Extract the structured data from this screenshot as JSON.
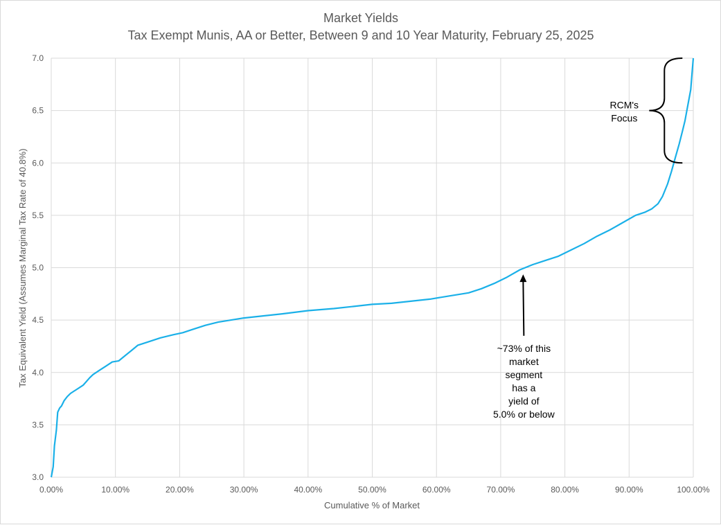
{
  "chart_data": {
    "type": "line",
    "title": "Market Yields",
    "subtitle": "Tax Exempt Munis, AA or Better, Between 9 and 10 Year Maturity, February 25, 2025",
    "xlabel": "Cumulative % of Market",
    "ylabel": "Tax Equivalent Yield (Assumes Marginal Tax Rate of 40.8%)",
    "xlim": [
      0,
      100
    ],
    "ylim": [
      3.0,
      7.0
    ],
    "grid": true,
    "x_ticks": [
      "0.00%",
      "10.00%",
      "20.00%",
      "30.00%",
      "40.00%",
      "50.00%",
      "60.00%",
      "70.00%",
      "80.00%",
      "90.00%",
      "100.00%"
    ],
    "y_ticks": [
      "3.0",
      "3.5",
      "4.0",
      "4.5",
      "5.0",
      "5.5",
      "6.0",
      "6.5",
      "7.0"
    ],
    "series_color": "#1ab0e8",
    "series": [
      {
        "x": [
          0,
          0.3,
          0.5,
          0.8,
          1.0,
          1.3,
          1.6,
          2.0,
          2.5,
          3.0,
          3.5,
          4.0,
          5.0,
          6.0,
          6.5,
          7.5,
          8.5,
          9.5,
          10.5,
          11.5,
          12.5,
          13.5,
          15.0,
          17.0,
          19.0,
          20.5,
          22.0,
          24.0,
          26.0,
          28.0,
          30.0,
          33.0,
          36.0,
          40.0,
          44.0,
          47.0,
          50.0,
          53.0,
          56.0,
          59.0,
          62.0,
          65.0,
          67.0,
          69.0,
          71.0,
          73.0,
          75.0,
          77.0,
          79.0,
          81.0,
          83.0,
          85.0,
          87.0,
          89.0,
          91.0,
          92.5,
          93.5,
          94.5,
          95.2,
          96.0,
          96.6,
          97.2,
          97.8,
          98.3,
          98.7,
          99.0,
          99.3,
          99.6,
          99.8,
          100.0
        ],
        "y": [
          3.0,
          3.1,
          3.3,
          3.45,
          3.62,
          3.66,
          3.68,
          3.73,
          3.77,
          3.8,
          3.82,
          3.84,
          3.88,
          3.95,
          3.98,
          4.02,
          4.06,
          4.1,
          4.11,
          4.16,
          4.21,
          4.26,
          4.29,
          4.33,
          4.36,
          4.38,
          4.41,
          4.45,
          4.48,
          4.5,
          4.52,
          4.54,
          4.56,
          4.59,
          4.61,
          4.63,
          4.65,
          4.66,
          4.68,
          4.7,
          4.73,
          4.76,
          4.8,
          4.85,
          4.91,
          4.98,
          5.03,
          5.07,
          5.11,
          5.17,
          5.23,
          5.3,
          5.36,
          5.43,
          5.5,
          5.53,
          5.56,
          5.61,
          5.68,
          5.8,
          5.92,
          6.05,
          6.18,
          6.3,
          6.4,
          6.5,
          6.6,
          6.7,
          6.85,
          7.0
        ]
      }
    ],
    "annotations": [
      {
        "lines": [
          "RCM's",
          "Focus"
        ],
        "brace_x": 95.5,
        "brace_y_range": [
          6.0,
          7.0
        ]
      },
      {
        "lines": [
          "~73% of this",
          "market",
          "segment",
          "has a",
          "yield of",
          "5.0% or below"
        ],
        "arrow_target": [
          73.5,
          4.95
        ],
        "arrow_tail_y": 4.35
      }
    ]
  }
}
